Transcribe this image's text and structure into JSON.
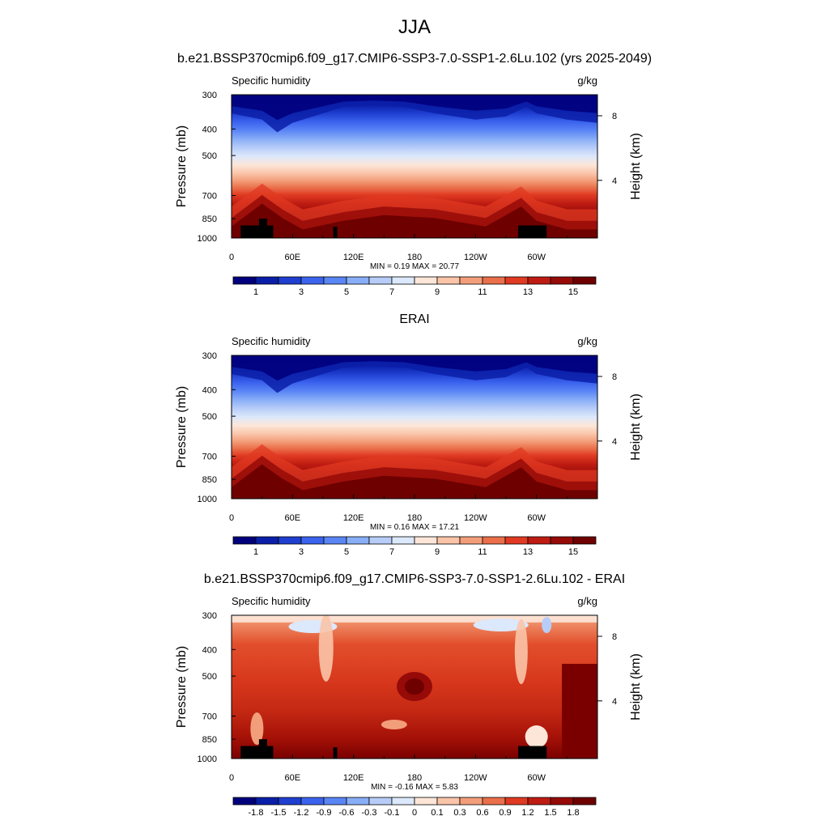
{
  "page_title": "JJA",
  "colors": {
    "abs_scale": [
      "#00007d",
      "#0a1fa8",
      "#1f3fd0",
      "#3b63ee",
      "#5a85f5",
      "#88aef7",
      "#b7cdf8",
      "#dce8fb",
      "#fde6d8",
      "#f9c4a8",
      "#f39e7a",
      "#ea6f4a",
      "#e03a22",
      "#be1c12",
      "#960a08",
      "#6e0000"
    ],
    "diff_scale": [
      "#00007d",
      "#0a1fa8",
      "#1f3fd0",
      "#3b63ee",
      "#5a85f5",
      "#88aef7",
      "#b7cdf8",
      "#dce8fb",
      "#fde6d8",
      "#f9c4a8",
      "#f39e7a",
      "#ea6f4a",
      "#e03a22",
      "#be1c12",
      "#960a08",
      "#6e0000"
    ],
    "terrain": "#000000"
  },
  "chart_data": [
    {
      "type": "heatmap",
      "panel_title": "b.e21.BSSP370cmip6.f09_g17.CMIP6-SSP3-7.0-SSP1-2.6Lu.102 (yrs 2025-2049)",
      "left_label": "Specific humidity",
      "right_label": "g/kg",
      "ylabel": "Pressure (mb)",
      "y2label": "Height (km)",
      "x_ticks": [
        "0",
        "60E",
        "120E",
        "180",
        "120W",
        "60W"
      ],
      "y_ticks": [
        "300",
        "400",
        "500",
        "700",
        "850",
        "1000"
      ],
      "y2_ticks": [
        "8",
        "4"
      ],
      "stats": "MIN =   0.19  MAX =  20.77",
      "colorbar_labels": [
        "1",
        "3",
        "5",
        "7",
        "9",
        "11",
        "13",
        "15"
      ],
      "min": 0.19,
      "max": 20.77,
      "ylim": [
        1000,
        300
      ],
      "xlim": [
        0,
        360
      ],
      "y_scale": "log",
      "field": "abs",
      "terrain": true
    },
    {
      "type": "heatmap",
      "panel_title": "ERAI",
      "left_label": "Specific humidity",
      "right_label": "g/kg",
      "ylabel": "Pressure (mb)",
      "y2label": "Height (km)",
      "x_ticks": [
        "0",
        "60E",
        "120E",
        "180",
        "120W",
        "60W"
      ],
      "y_ticks": [
        "300",
        "400",
        "500",
        "700",
        "850",
        "1000"
      ],
      "y2_ticks": [
        "8",
        "4"
      ],
      "stats": "MIN =   0.16  MAX =  17.21",
      "colorbar_labels": [
        "1",
        "3",
        "5",
        "7",
        "9",
        "11",
        "13",
        "15"
      ],
      "min": 0.16,
      "max": 17.21,
      "ylim": [
        1000,
        300
      ],
      "xlim": [
        0,
        360
      ],
      "y_scale": "log",
      "field": "abs",
      "terrain": false
    },
    {
      "type": "heatmap",
      "panel_title": "b.e21.BSSP370cmip6.f09_g17.CMIP6-SSP3-7.0-SSP1-2.6Lu.102 - ERAI",
      "left_label": "Specific humidity",
      "right_label": "g/kg",
      "ylabel": "Pressure (mb)",
      "y2label": "Height (km)",
      "x_ticks": [
        "0",
        "60E",
        "120E",
        "180",
        "120W",
        "60W"
      ],
      "y_ticks": [
        "300",
        "400",
        "500",
        "700",
        "850",
        "1000"
      ],
      "y2_ticks": [
        "8",
        "4"
      ],
      "stats": "MIN =  -0.16  MAX =    5.83",
      "colorbar_labels": [
        "-1.8",
        "-1.5",
        "-1.2",
        "-0.9",
        "-0.6",
        "-0.3",
        "-0.1",
        "0",
        "0.1",
        "0.3",
        "0.6",
        "0.9",
        "1.2",
        "1.5",
        "1.8"
      ],
      "min": -0.16,
      "max": 5.83,
      "ylim": [
        1000,
        300
      ],
      "xlim": [
        0,
        360
      ],
      "y_scale": "log",
      "field": "diff",
      "terrain": true
    }
  ]
}
